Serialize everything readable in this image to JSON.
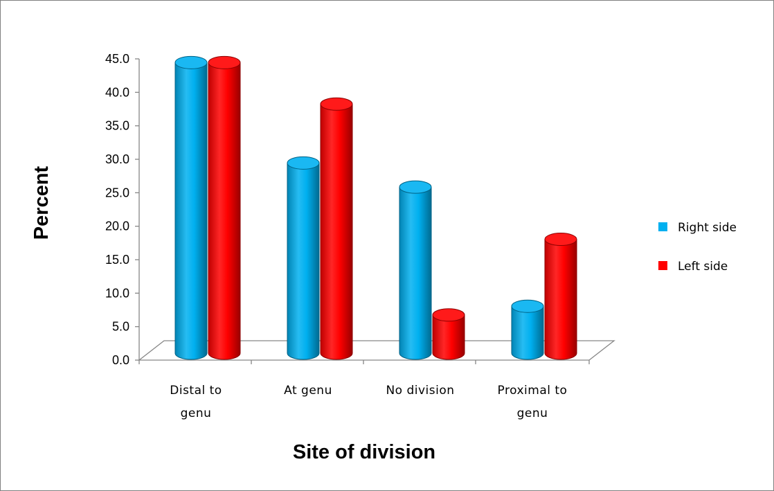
{
  "chart_data": {
    "type": "bar",
    "style": "3d-cylinder",
    "categories": [
      [
        "Distal to",
        "genu"
      ],
      [
        "At genu"
      ],
      [
        "No division"
      ],
      [
        "Proximal to",
        "genu"
      ]
    ],
    "series": [
      {
        "name": "Right side",
        "color": "#00b0f0",
        "values": [
          43.0,
          28.0,
          24.4,
          6.6
        ]
      },
      {
        "name": "Left side",
        "color": "#ff0000",
        "values": [
          43.0,
          36.8,
          5.3,
          16.6
        ]
      }
    ],
    "xlabel": "Site of division",
    "ylabel": "Percent",
    "ylim": [
      0,
      45
    ],
    "yticks": [
      "0.0",
      "5.0",
      "10.0",
      "15.0",
      "20.0",
      "25.0",
      "30.0",
      "35.0",
      "40.0",
      "45.0"
    ],
    "legend_position": "right"
  }
}
